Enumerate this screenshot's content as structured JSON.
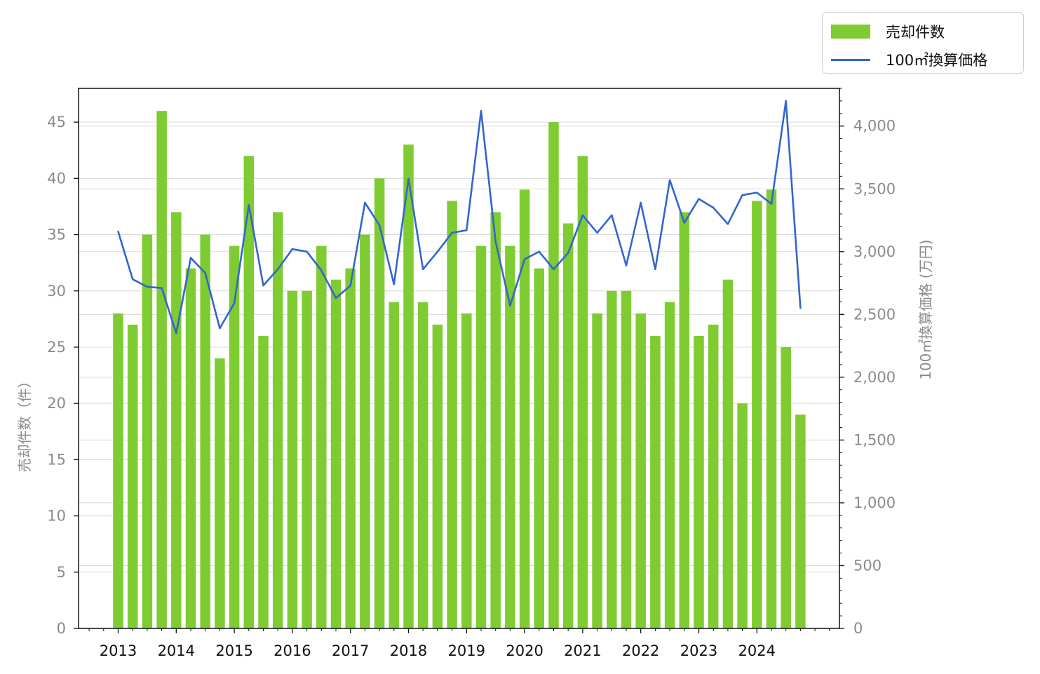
{
  "chart_data": {
    "type": "bar+line",
    "x_tick_labels": [
      "2013",
      "2014",
      "2015",
      "2016",
      "2017",
      "2018",
      "2019",
      "2020",
      "2021",
      "2022",
      "2023",
      "2024"
    ],
    "periods_per_year": 4,
    "left_axis": {
      "label": "売却件数（件）",
      "ylim": [
        0,
        48
      ],
      "ticks": [
        0,
        5,
        10,
        15,
        20,
        25,
        30,
        35,
        40,
        45
      ],
      "tick_labels": [
        "0",
        "5",
        "10",
        "15",
        "20",
        "25",
        "30",
        "35",
        "40",
        "45"
      ]
    },
    "right_axis": {
      "label": "100㎡換算価格 (万円)",
      "ylim": [
        0,
        4300
      ],
      "ticks": [
        0,
        500,
        1000,
        1500,
        2000,
        2500,
        3000,
        3500,
        4000
      ],
      "tick_labels": [
        "0",
        "500",
        "1,000",
        "1,500",
        "2,000",
        "2,500",
        "3,000",
        "3,500",
        "4,000"
      ]
    },
    "grid": "horizontal",
    "legend_position": "top-right outside",
    "series": [
      {
        "name": "売却件数",
        "type": "bar",
        "axis": "left",
        "color": "#7fcb32",
        "values": [
          28,
          27,
          35,
          46,
          37,
          32,
          35,
          24,
          34,
          42,
          26,
          37,
          30,
          30,
          34,
          31,
          32,
          35,
          40,
          29,
          43,
          29,
          27,
          38,
          28,
          34,
          37,
          34,
          39,
          32,
          45,
          36,
          42,
          28,
          30,
          30,
          28,
          26,
          29,
          37,
          26,
          27,
          31,
          20,
          38,
          39,
          25,
          19
        ]
      },
      {
        "name": "100㎡換算価格",
        "type": "line",
        "axis": "right",
        "color": "#3366cc",
        "values": [
          3160,
          2780,
          2720,
          2710,
          2350,
          2950,
          2830,
          2390,
          2590,
          3370,
          2730,
          2860,
          3020,
          3000,
          2850,
          2630,
          2730,
          3390,
          3210,
          2740,
          3580,
          2860,
          3000,
          3150,
          3170,
          4120,
          3080,
          2570,
          2940,
          3000,
          2860,
          2990,
          3290,
          3150,
          3290,
          2890,
          3390,
          2860,
          3570,
          3230,
          3420,
          3350,
          3220,
          3450,
          3470,
          3380,
          4200,
          2550
        ]
      }
    ]
  }
}
